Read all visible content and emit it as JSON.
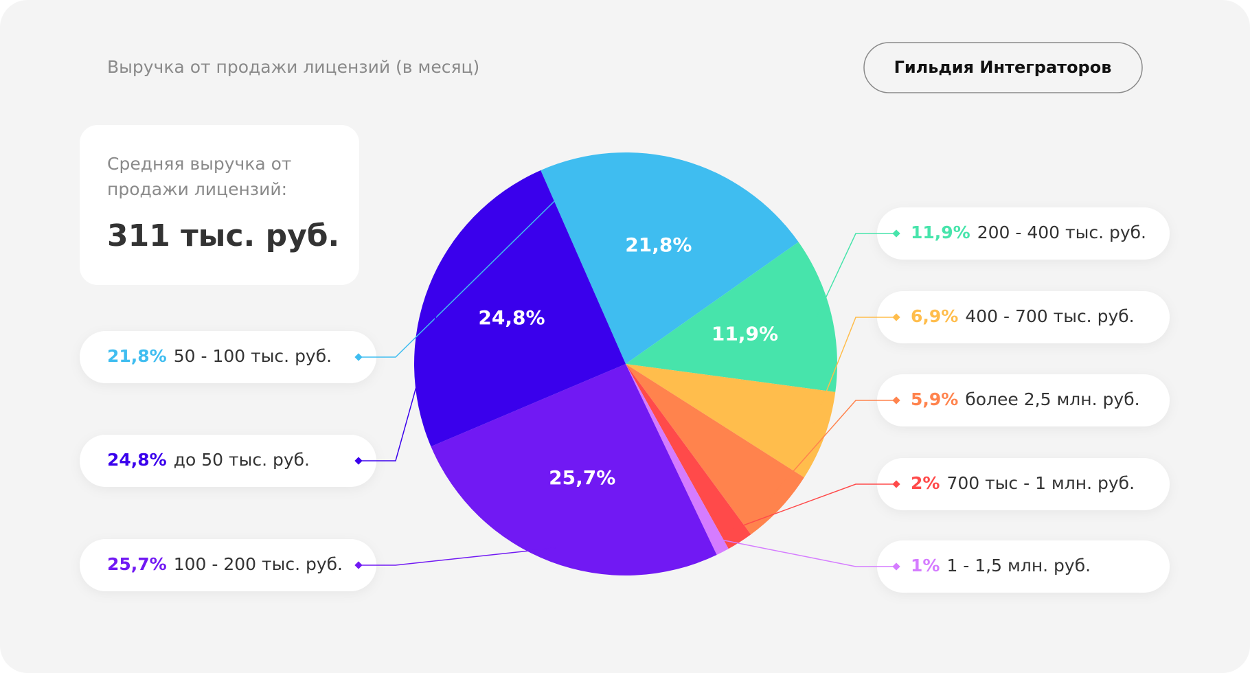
{
  "badge": "Гильдия Интеграторов",
  "summary": {
    "label_lines": [
      "Средняя выручка от",
      "продажи лицензий:"
    ],
    "value": "311 тыс. руб."
  },
  "chart_data": {
    "type": "pie",
    "title": "Выручка от продажи лицензий (в месяц)",
    "categories": [
      "50 - 100 тыс. руб.",
      "200 - 400 тыс. руб.",
      "400 - 700 тыс. руб.",
      "более 2,5 млн. руб.",
      "700 тыс - 1 млн. руб.",
      "1 - 1,5 млн. руб.",
      "100 - 200 тыс. руб.",
      "до 50 тыс. руб."
    ],
    "values": [
      21.8,
      11.9,
      6.9,
      5.9,
      2,
      1,
      25.7,
      24.8
    ],
    "value_labels": [
      "21,8%",
      "11,9%",
      "6,9%",
      "5,9%",
      "2%",
      "1%",
      "25,7%",
      "24,8%"
    ],
    "colors": [
      "#3fbdf0",
      "#47e4ab",
      "#ffbd4c",
      "#ff834d",
      "#ff4a4a",
      "#d57cff",
      "#7119f3",
      "#3a00ec"
    ]
  }
}
